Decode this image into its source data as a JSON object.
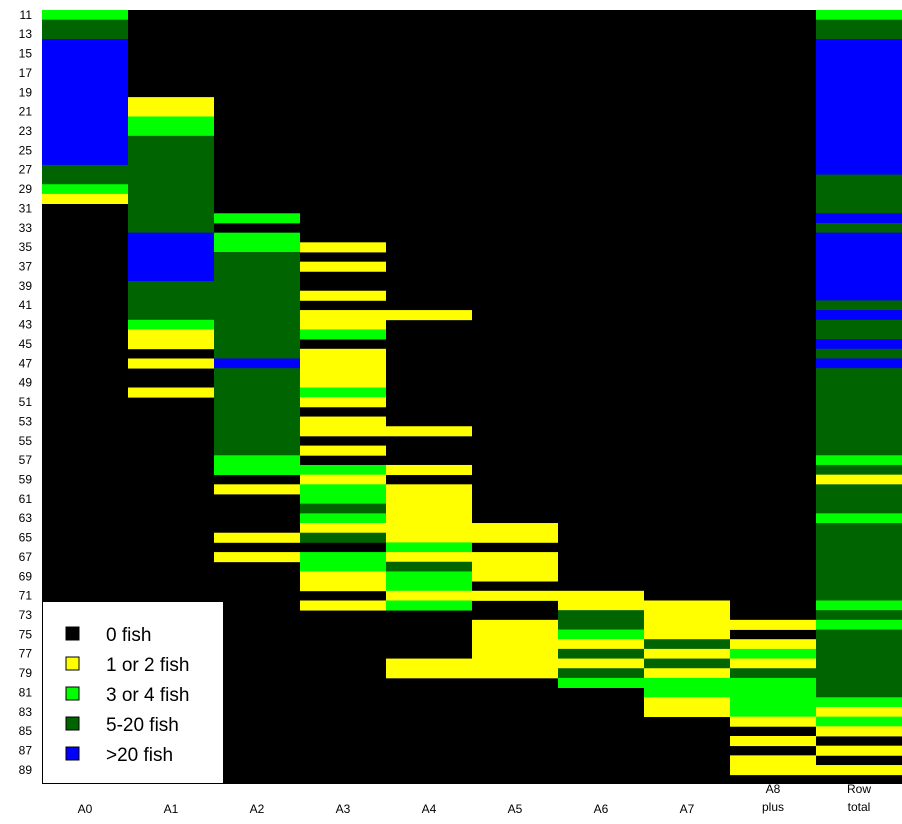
{
  "chart_data": {
    "type": "heatmap",
    "columns": [
      "A0",
      "A1",
      "A2",
      "A3",
      "A4",
      "A5",
      "A6",
      "A7",
      "A8\nplus",
      "Row\ntotal"
    ],
    "y_tick_labels": [
      "11",
      "13",
      "15",
      "17",
      "19",
      "21",
      "23",
      "25",
      "27",
      "29",
      "31",
      "33",
      "35",
      "37",
      "39",
      "41",
      "43",
      "45",
      "47",
      "49",
      "51",
      "53",
      "55",
      "57",
      "59",
      "61",
      "63",
      "65",
      "67",
      "69",
      "71",
      "73",
      "75",
      "77",
      "79",
      "81",
      "83",
      "85",
      "87",
      "89"
    ],
    "y_range": [
      11,
      89
    ],
    "legend": {
      "position": "bottom-left",
      "items": [
        {
          "label": "0 fish",
          "category": 0,
          "color": "#000000"
        },
        {
          "label": "1 or 2 fish",
          "category": 1,
          "color": "#ffff00"
        },
        {
          "label": "3 or 4 fish",
          "category": 2,
          "color": "#00ff00"
        },
        {
          "label": "5-20 fish",
          "category": 3,
          "color": "#006400"
        },
        {
          "label": ">20 fish",
          "category": 4,
          "color": "#0000ff"
        }
      ]
    },
    "background_color": "#000000",
    "cells": [
      {
        "column": "A0",
        "ranges": [
          [
            11,
            11,
            2
          ],
          [
            12,
            13,
            3
          ],
          [
            14,
            26,
            4
          ],
          [
            27,
            28,
            3
          ],
          [
            29,
            29,
            2
          ],
          [
            30,
            30,
            1
          ]
        ]
      },
      {
        "column": "A1",
        "ranges": [
          [
            20,
            21,
            1
          ],
          [
            22,
            23,
            2
          ],
          [
            24,
            33,
            3
          ],
          [
            34,
            38,
            4
          ],
          [
            39,
            42,
            3
          ],
          [
            43,
            43,
            2
          ],
          [
            44,
            45,
            1
          ],
          [
            47,
            47,
            1
          ],
          [
            50,
            50,
            1
          ]
        ]
      },
      {
        "column": "A2",
        "ranges": [
          [
            32,
            32,
            2
          ],
          [
            34,
            35,
            2
          ],
          [
            36,
            46,
            3
          ],
          [
            47,
            47,
            4
          ],
          [
            48,
            56,
            3
          ],
          [
            57,
            58,
            2
          ],
          [
            60,
            60,
            1
          ],
          [
            65,
            65,
            1
          ],
          [
            67,
            67,
            1
          ]
        ]
      },
      {
        "column": "A3",
        "ranges": [
          [
            35,
            35,
            1
          ],
          [
            37,
            37,
            1
          ],
          [
            40,
            40,
            1
          ],
          [
            42,
            43,
            1
          ],
          [
            44,
            44,
            2
          ],
          [
            46,
            49,
            1
          ],
          [
            50,
            50,
            2
          ],
          [
            51,
            51,
            1
          ],
          [
            53,
            54,
            1
          ],
          [
            56,
            56,
            1
          ],
          [
            58,
            58,
            2
          ],
          [
            59,
            59,
            1
          ],
          [
            60,
            61,
            2
          ],
          [
            62,
            62,
            3
          ],
          [
            63,
            63,
            2
          ],
          [
            64,
            64,
            1
          ],
          [
            65,
            65,
            3
          ],
          [
            67,
            68,
            2
          ],
          [
            69,
            70,
            1
          ],
          [
            72,
            72,
            1
          ]
        ]
      },
      {
        "column": "A4",
        "ranges": [
          [
            42,
            42,
            1
          ],
          [
            54,
            54,
            1
          ],
          [
            58,
            58,
            1
          ],
          [
            60,
            65,
            1
          ],
          [
            66,
            66,
            2
          ],
          [
            67,
            67,
            1
          ],
          [
            68,
            68,
            3
          ],
          [
            69,
            70,
            2
          ],
          [
            71,
            71,
            1
          ],
          [
            72,
            72,
            2
          ],
          [
            78,
            79,
            1
          ]
        ]
      },
      {
        "column": "A5",
        "ranges": [
          [
            64,
            65,
            1
          ],
          [
            67,
            69,
            1
          ],
          [
            71,
            71,
            1
          ],
          [
            74,
            79,
            1
          ]
        ]
      },
      {
        "column": "A6",
        "ranges": [
          [
            71,
            72,
            1
          ],
          [
            73,
            74,
            3
          ],
          [
            75,
            75,
            2
          ],
          [
            76,
            76,
            1
          ],
          [
            77,
            77,
            3
          ],
          [
            78,
            78,
            1
          ],
          [
            79,
            79,
            3
          ],
          [
            80,
            80,
            2
          ]
        ]
      },
      {
        "column": "A7",
        "ranges": [
          [
            72,
            75,
            1
          ],
          [
            76,
            76,
            3
          ],
          [
            77,
            77,
            1
          ],
          [
            78,
            78,
            3
          ],
          [
            79,
            79,
            1
          ],
          [
            80,
            81,
            2
          ],
          [
            82,
            83,
            1
          ]
        ]
      },
      {
        "column": "A8\nplus",
        "ranges": [
          [
            74,
            74,
            1
          ],
          [
            76,
            76,
            1
          ],
          [
            77,
            77,
            2
          ],
          [
            78,
            78,
            1
          ],
          [
            79,
            79,
            3
          ],
          [
            80,
            83,
            2
          ],
          [
            84,
            84,
            1
          ],
          [
            86,
            86,
            1
          ],
          [
            88,
            88,
            1
          ],
          [
            89,
            89,
            1
          ]
        ]
      },
      {
        "column": "Row\ntotal",
        "ranges": [
          [
            11,
            11,
            2
          ],
          [
            12,
            13,
            3
          ],
          [
            14,
            27,
            4
          ],
          [
            28,
            31,
            3
          ],
          [
            32,
            32,
            4
          ],
          [
            33,
            33,
            3
          ],
          [
            34,
            40,
            4
          ],
          [
            41,
            41,
            3
          ],
          [
            42,
            42,
            4
          ],
          [
            43,
            44,
            3
          ],
          [
            45,
            45,
            4
          ],
          [
            46,
            46,
            3
          ],
          [
            47,
            47,
            4
          ],
          [
            48,
            56,
            3
          ],
          [
            57,
            57,
            2
          ],
          [
            58,
            58,
            3
          ],
          [
            59,
            59,
            1
          ],
          [
            60,
            62,
            3
          ],
          [
            63,
            63,
            2
          ],
          [
            64,
            71,
            3
          ],
          [
            72,
            72,
            2
          ],
          [
            73,
            73,
            3
          ],
          [
            74,
            74,
            2
          ],
          [
            75,
            81,
            3
          ],
          [
            82,
            82,
            2
          ],
          [
            83,
            83,
            1
          ],
          [
            84,
            84,
            2
          ],
          [
            85,
            85,
            1
          ],
          [
            87,
            87,
            1
          ],
          [
            89,
            89,
            1
          ]
        ]
      }
    ]
  }
}
